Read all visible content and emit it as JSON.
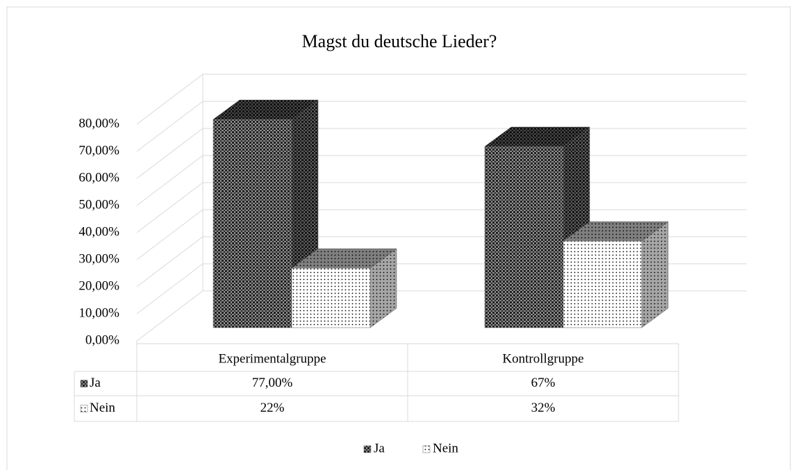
{
  "chart_data": {
    "type": "bar3d",
    "title": "Magst du deutsche Lieder?",
    "categories": [
      "Experimentalgruppe",
      "Kontrollgruppe"
    ],
    "series": [
      {
        "name": "Ja",
        "color": "#8c8c8c",
        "values": [
          77,
          67
        ],
        "value_labels": [
          "77,00%",
          "67%"
        ]
      },
      {
        "name": "Nein",
        "color": "#ffffff",
        "values": [
          22,
          32
        ],
        "value_labels": [
          "22%",
          "32%"
        ]
      }
    ],
    "ylim": [
      0,
      80
    ],
    "yticks": [
      {
        "value": 0,
        "label": "0,00%"
      },
      {
        "value": 10,
        "label": "10,00%"
      },
      {
        "value": 20,
        "label": "20,00%"
      },
      {
        "value": 30,
        "label": "30,00%"
      },
      {
        "value": 40,
        "label": "40,00%"
      },
      {
        "value": 50,
        "label": "50,00%"
      },
      {
        "value": 60,
        "label": "60,00%"
      },
      {
        "value": 70,
        "label": "70,00%"
      },
      {
        "value": 80,
        "label": "80,00%"
      }
    ],
    "grid": true,
    "legend": "bottom",
    "data_table": true
  }
}
